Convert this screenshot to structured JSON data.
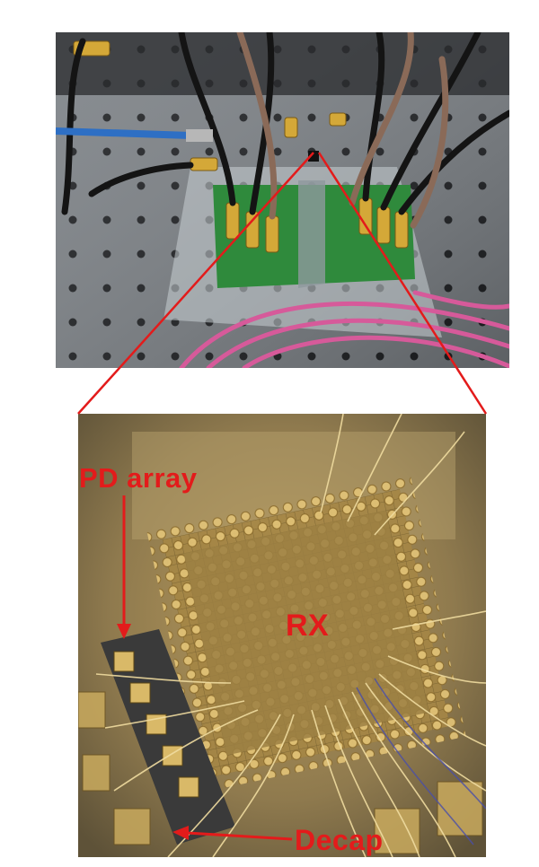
{
  "labels": {
    "pd_array": "PD array",
    "rx": "RX",
    "decap": "Decap"
  },
  "colors": {
    "annotation_red": "#e31b1b",
    "pcb_green": "#2f8a3c",
    "cable_pink": "#d65a9a",
    "gold": "#c9a14a"
  }
}
